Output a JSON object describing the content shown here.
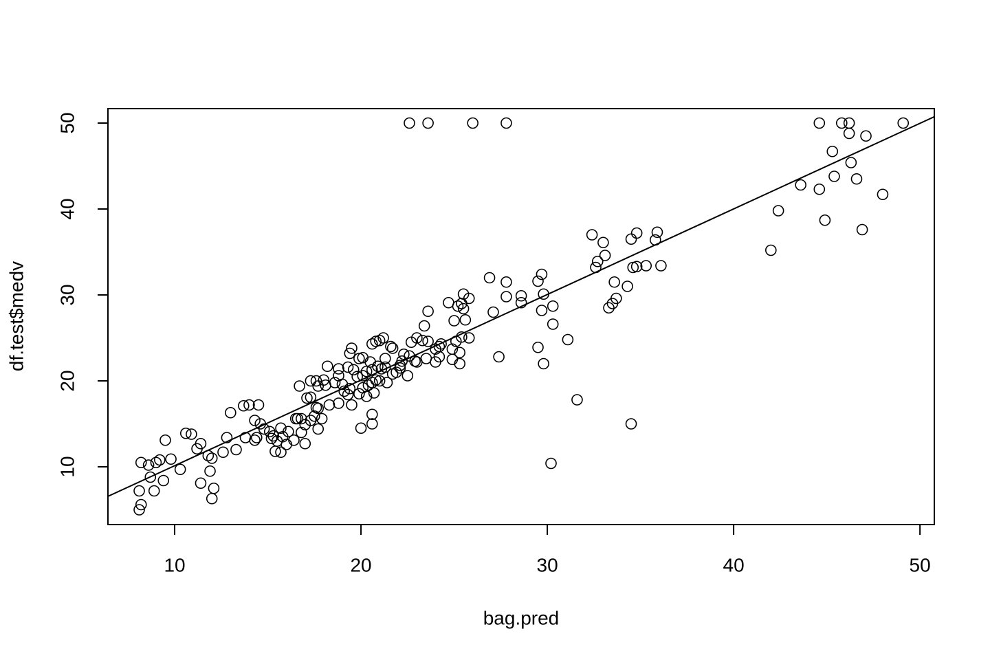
{
  "chart_data": {
    "type": "scatter",
    "x_label": "bag.pred",
    "y_label": "df.test$medv",
    "xlim": [
      6.42,
      50.77
    ],
    "ylim": [
      3.28,
      51.68
    ],
    "xticks": [
      10,
      20,
      30,
      40,
      50
    ],
    "yticks": [
      10,
      20,
      30,
      40,
      50
    ],
    "color": "#000000",
    "fit_line": {
      "intercept": 0.17,
      "slope": 0.996
    },
    "x": [
      22.6,
      23.6,
      26.0,
      27.8,
      44.6,
      45.8,
      46.2,
      49.1,
      46.2,
      47.1,
      45.3,
      46.3,
      45.4,
      46.6,
      43.6,
      44.6,
      48.0,
      42.4,
      44.9,
      46.9,
      42.0,
      32.4,
      34.8,
      35.9,
      34.5,
      35.8,
      33.0,
      33.1,
      32.7,
      32.6,
      34.6,
      34.8,
      35.3,
      36.1,
      29.7,
      29.5,
      33.6,
      27.8,
      26.9,
      34.3,
      29.8,
      27.8,
      28.6,
      33.7,
      33.5,
      33.3,
      28.6,
      30.3,
      29.7,
      27.1,
      30.3,
      31.1,
      29.5,
      27.4,
      29.8,
      31.6,
      34.5,
      30.2,
      25.5,
      25.8,
      24.7,
      25.2,
      25.4,
      23.6,
      25.5,
      25.0,
      25.6,
      23.4,
      25.8,
      25.4,
      25.1,
      23.0,
      23.3,
      23.6,
      22.7,
      24.3,
      24.2,
      24.0,
      24.9,
      25.3,
      24.2,
      23.5,
      22.6,
      22.3,
      23.0,
      24.0,
      24.9,
      25.3,
      22.5,
      22.9,
      22.1,
      22.2,
      21.6,
      21.2,
      21.0,
      20.8,
      20.6,
      21.7,
      21.3,
      20.5,
      20.9,
      21.3,
      21.1,
      20.6,
      20.3,
      20.1,
      19.8,
      19.5,
      19.4,
      19.9,
      20.1,
      19.3,
      19.6,
      18.8,
      18.2,
      18.8,
      18.6,
      18.0,
      17.6,
      17.3,
      18.1,
      17.7,
      16.7,
      19.0,
      19.4,
      19.1,
      19.3,
      19.9,
      19.5,
      18.8,
      18.3,
      17.6,
      17.7,
      17.1,
      17.3,
      16.6,
      17.3,
      17.9,
      17.5,
      16.8,
      16.5,
      17.0,
      17.7,
      16.8,
      16.4,
      17.0,
      20.1,
      20.4,
      20.6,
      20.8,
      21.0,
      21.4,
      21.7,
      20.7,
      20.3,
      20.0,
      20.6,
      20.6,
      21.9,
      22.1,
      14.5,
      13.7,
      14.0,
      13.0,
      14.3,
      14.6,
      14.8,
      15.1,
      15.7,
      16.1,
      15.3,
      15.8,
      15.2,
      14.4,
      13.8,
      14.3,
      15.5,
      16.0,
      15.4,
      15.7,
      12.8,
      13.3,
      12.6,
      11.4,
      11.2,
      10.9,
      10.6,
      9.5,
      12.0,
      11.8,
      9.8,
      9.2,
      9.0,
      8.2,
      8.6,
      10.3,
      11.9,
      8.7,
      9.4,
      11.4,
      12.1,
      8.1,
      8.9,
      12.0,
      8.2,
      8.1
    ],
    "values": [
      50,
      50,
      50,
      50,
      50,
      50,
      50,
      50,
      48.8,
      48.5,
      46.7,
      45.4,
      43.8,
      43.5,
      42.8,
      42.3,
      41.7,
      39.8,
      38.7,
      37.6,
      35.2,
      37.0,
      37.2,
      37.3,
      36.5,
      36.4,
      36.1,
      34.6,
      33.9,
      33.2,
      33.2,
      33.3,
      33.4,
      33.4,
      32.4,
      31.6,
      31.5,
      31.5,
      32.0,
      31.0,
      30.1,
      29.8,
      29.9,
      29.6,
      29.0,
      28.5,
      29.1,
      28.7,
      28.2,
      28.0,
      26.6,
      24.8,
      23.9,
      22.8,
      22.0,
      17.8,
      15.0,
      10.4,
      30.1,
      29.6,
      29.1,
      28.7,
      29.0,
      28.1,
      28.4,
      27.0,
      27.1,
      26.4,
      25.0,
      25.1,
      24.6,
      25.0,
      24.7,
      24.6,
      24.5,
      24.3,
      24.0,
      23.7,
      23.7,
      23.3,
      22.8,
      22.6,
      22.9,
      23.1,
      22.2,
      22.2,
      22.5,
      22.0,
      20.6,
      22.3,
      21.8,
      22.3,
      24.0,
      25.0,
      24.7,
      24.6,
      24.3,
      23.8,
      22.6,
      22.2,
      21.7,
      21.6,
      21.4,
      21.3,
      21.1,
      20.6,
      20.5,
      23.8,
      23.2,
      22.6,
      22.7,
      21.6,
      21.3,
      21.4,
      21.7,
      20.6,
      19.8,
      20.1,
      20.0,
      20.0,
      19.5,
      19.4,
      19.4,
      19.6,
      19.1,
      18.8,
      18.4,
      18.5,
      17.2,
      17.4,
      17.2,
      16.9,
      16.8,
      18.0,
      18.1,
      15.6,
      15.4,
      15.6,
      15.9,
      15.6,
      15.6,
      14.9,
      14.4,
      14.0,
      13.1,
      12.7,
      19.2,
      19.5,
      19.8,
      20.1,
      20.0,
      19.8,
      20.8,
      18.6,
      18.2,
      14.5,
      15.0,
      16.1,
      21.0,
      21.5,
      17.2,
      17.1,
      17.2,
      16.3,
      15.4,
      15.0,
      14.4,
      14.1,
      14.5,
      14.1,
      13.6,
      13.5,
      13.3,
      13.4,
      13.4,
      13.1,
      13.0,
      12.6,
      11.8,
      11.7,
      13.4,
      12.0,
      11.7,
      12.7,
      12.1,
      13.8,
      13.9,
      13.1,
      11.0,
      11.3,
      10.9,
      10.8,
      10.5,
      10.5,
      10.2,
      9.7,
      9.5,
      8.8,
      8.4,
      8.1,
      7.5,
      7.2,
      7.2,
      6.3,
      5.6,
      5.0
    ]
  }
}
